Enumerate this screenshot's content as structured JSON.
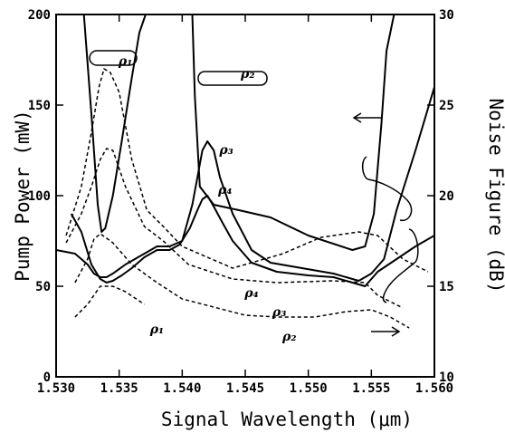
{
  "chart_data": {
    "type": "line",
    "xlabel": "Signal Wavelength (μm)",
    "ylabel_left": "Pump Power (mW)",
    "ylabel_right": "Noise Figure (dB)",
    "xlim": [
      1.53,
      1.56
    ],
    "ylim_left": [
      0,
      200
    ],
    "ylim_right": [
      10,
      30
    ],
    "x_ticks": [
      "1.530",
      "1.535",
      "1.540",
      "1.545",
      "1.550",
      "1.555",
      "1.560"
    ],
    "y_left_ticks": [
      "0",
      "50",
      "100",
      "150",
      "200"
    ],
    "y_right_ticks": [
      "10",
      "15",
      "20",
      "25",
      "30"
    ],
    "grid": false,
    "series": [
      {
        "name": "ρ₁",
        "axis": "left",
        "style": "solid",
        "x": [
          1.5322,
          1.5328,
          1.5333,
          1.5336,
          1.5339,
          1.5345,
          1.5352,
          1.536,
          1.5366,
          1.5371
        ],
        "y": [
          200,
          145,
          95,
          80,
          82,
          100,
          130,
          165,
          190,
          200
        ]
      },
      {
        "name": "ρ₂",
        "axis": "left",
        "style": "solid",
        "x": [
          1.5408,
          1.541,
          1.5414,
          1.5425,
          1.5445,
          1.547,
          1.55,
          1.5535,
          1.5545,
          1.5552,
          1.5558,
          1.5562,
          1.5568
        ],
        "y": [
          200,
          155,
          105,
          95,
          92,
          88,
          78,
          70,
          72,
          90,
          140,
          180,
          200
        ]
      },
      {
        "name": "ρ₃",
        "axis": "left",
        "style": "solid",
        "x": [
          1.53,
          1.5315,
          1.5325,
          1.533,
          1.5335,
          1.534,
          1.5345,
          1.5355,
          1.537,
          1.538,
          1.539,
          1.54,
          1.5408,
          1.5412,
          1.5416,
          1.542,
          1.5425,
          1.543,
          1.544,
          1.5455,
          1.547,
          1.5495,
          1.552,
          1.554,
          1.555,
          1.556,
          1.557,
          1.5585,
          1.56
        ],
        "y": [
          70,
          68,
          62,
          57,
          55,
          55,
          57,
          62,
          68,
          72,
          72,
          75,
          95,
          110,
          125,
          130,
          125,
          110,
          90,
          70,
          63,
          60,
          57,
          53,
          57,
          65,
          92,
          125,
          160
        ]
      },
      {
        "name": "ρ₄",
        "axis": "left",
        "style": "solid",
        "x": [
          1.5312,
          1.532,
          1.5328,
          1.5335,
          1.534,
          1.5345,
          1.5352,
          1.536,
          1.537,
          1.538,
          1.539,
          1.5398,
          1.5406,
          1.5412,
          1.5416,
          1.542,
          1.5425,
          1.5432,
          1.544,
          1.5455,
          1.5475,
          1.55,
          1.552,
          1.5545,
          1.5555,
          1.557,
          1.5585,
          1.56
        ],
        "y": [
          90,
          80,
          62,
          54,
          52,
          53,
          56,
          60,
          66,
          70,
          70,
          73,
          82,
          92,
          98,
          100,
          94,
          85,
          75,
          63,
          58,
          56,
          55,
          50,
          58,
          65,
          72,
          78
        ]
      },
      {
        "name": "ρ₁ NF",
        "axis": "right",
        "style": "dashed",
        "x": [
          1.5315,
          1.5325,
          1.5335,
          1.5345,
          1.5355,
          1.537
        ],
        "y": [
          13.3,
          14.0,
          15.0,
          15.0,
          14.7,
          14.0
        ]
      },
      {
        "name": "ρ₂ NF",
        "axis": "right",
        "style": "dashed",
        "x": [
          1.5315,
          1.5325,
          1.533,
          1.5335,
          1.5345,
          1.536,
          1.538,
          1.54,
          1.545,
          1.5475,
          1.5505,
          1.553,
          1.555,
          1.5565,
          1.558
        ],
        "y": [
          15.2,
          16.5,
          17.6,
          17.9,
          17.4,
          16.2,
          15.2,
          14.3,
          13.4,
          13.3,
          13.3,
          13.6,
          13.7,
          13.3,
          12.7
        ]
      },
      {
        "name": "ρ₃ NF",
        "axis": "right",
        "style": "dashed",
        "x": [
          1.5308,
          1.532,
          1.5328,
          1.5335,
          1.534,
          1.5345,
          1.5355,
          1.537,
          1.5385,
          1.5405,
          1.544,
          1.5475,
          1.552,
          1.5545,
          1.5555,
          1.5575
        ],
        "y": [
          17.4,
          19.0,
          20.5,
          22.0,
          22.6,
          22.5,
          20.5,
          18.3,
          17.5,
          16.2,
          15.4,
          15.2,
          15.3,
          15.2,
          14.5,
          13.8
        ]
      },
      {
        "name": "ρ₄ NF",
        "axis": "right",
        "style": "dashed",
        "x": [
          1.5308,
          1.532,
          1.5328,
          1.5334,
          1.5338,
          1.5343,
          1.535,
          1.536,
          1.5372,
          1.5385,
          1.54,
          1.544,
          1.548,
          1.551,
          1.554,
          1.5555,
          1.5575,
          1.5595
        ],
        "y": [
          17.8,
          20.5,
          23.5,
          26.0,
          27.0,
          26.8,
          25.7,
          22.0,
          19.2,
          18.3,
          17.2,
          16.0,
          16.8,
          17.7,
          18.0,
          17.8,
          16.5,
          15.8
        ]
      }
    ],
    "annotations": [
      {
        "text": "ρ₁",
        "x": 1.5355,
        "y": 172,
        "axis": "left"
      },
      {
        "text": "ρ₂",
        "x": 1.5452,
        "y": 165,
        "axis": "left"
      },
      {
        "text": "ρ₃",
        "x": 1.5435,
        "y": 123,
        "axis": "left"
      },
      {
        "text": "ρ₄",
        "x": 1.5434,
        "y": 101,
        "axis": "left"
      },
      {
        "text": "ρ₄",
        "x": 1.5455,
        "y": 44,
        "axis": "left"
      },
      {
        "text": "ρ₃",
        "x": 1.5477,
        "y": 33.5,
        "axis": "left"
      },
      {
        "text": "ρ₁",
        "x": 1.538,
        "y": 24,
        "axis": "left"
      },
      {
        "text": "ρ₂",
        "x": 1.5485,
        "y": 20,
        "axis": "left"
      }
    ]
  }
}
